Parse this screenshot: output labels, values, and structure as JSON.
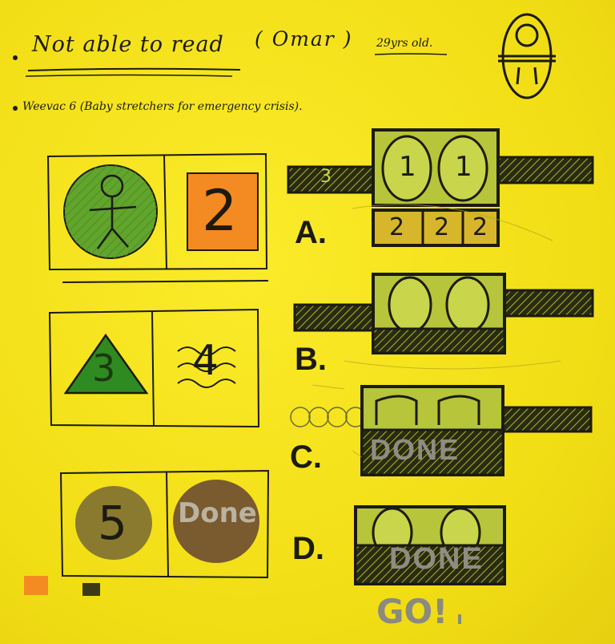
{
  "note_lines": {
    "title": "Not able to read",
    "name": "( Omar )",
    "age": "29yrs old.",
    "subtitle": "Weevac 6 (Baby stretchers for emergency crisis)."
  },
  "panels": {
    "panel_2": "2",
    "panel_3": "3",
    "panel_4": "4",
    "panel_5": "5",
    "panel_done": "Done"
  },
  "steps": {
    "a": "A.",
    "b": "B.",
    "c": "C.",
    "d": "D."
  },
  "device_labels": {
    "slot_1": "1",
    "slot_2": "1",
    "tray_1": "2",
    "tray_2": "2",
    "tray_3": "2",
    "belt_left": "3"
  },
  "status": {
    "done_c": "DONE",
    "done_d": "DONE",
    "go": "GO!"
  },
  "colors": {
    "paper": "#f3e21c",
    "ink": "#1b1b12",
    "green": "#3f9a2a",
    "orange": "#f48a22",
    "brown": "#7a5a2f",
    "gray": "#8f8d82"
  }
}
